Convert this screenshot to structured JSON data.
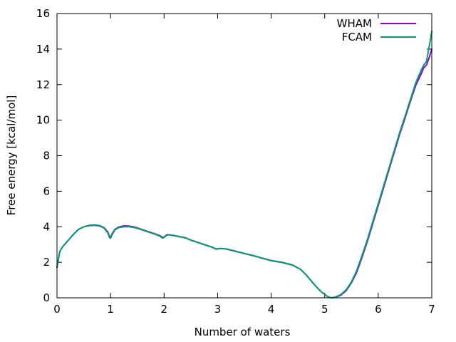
{
  "chart_data": {
    "type": "line",
    "xlabel": "Number of waters",
    "ylabel": "Free energy [kcal/mol]",
    "xlim": [
      0,
      7
    ],
    "ylim": [
      0,
      16
    ],
    "xticks": [
      "0",
      "1",
      "2",
      "3",
      "4",
      "5",
      "6",
      "7"
    ],
    "yticks": [
      "0",
      "2",
      "4",
      "6",
      "8",
      "10",
      "12",
      "14",
      "16"
    ],
    "grid": false,
    "legend_position": "top-right",
    "series": [
      {
        "name": "WHAM",
        "color": "#9400d3",
        "points": [
          [
            0.0,
            1.7
          ],
          [
            0.05,
            2.6
          ],
          [
            0.1,
            2.85
          ],
          [
            0.2,
            3.2
          ],
          [
            0.3,
            3.55
          ],
          [
            0.4,
            3.85
          ],
          [
            0.5,
            4.0
          ],
          [
            0.6,
            4.08
          ],
          [
            0.7,
            4.1
          ],
          [
            0.8,
            4.06
          ],
          [
            0.88,
            3.95
          ],
          [
            0.95,
            3.7
          ],
          [
            0.98,
            3.45
          ],
          [
            1.0,
            3.4
          ],
          [
            1.03,
            3.6
          ],
          [
            1.08,
            3.85
          ],
          [
            1.15,
            3.98
          ],
          [
            1.25,
            4.05
          ],
          [
            1.35,
            4.04
          ],
          [
            1.45,
            3.98
          ],
          [
            1.55,
            3.88
          ],
          [
            1.65,
            3.78
          ],
          [
            1.75,
            3.68
          ],
          [
            1.85,
            3.58
          ],
          [
            1.92,
            3.5
          ],
          [
            1.97,
            3.4
          ],
          [
            2.0,
            3.42
          ],
          [
            2.05,
            3.55
          ],
          [
            2.1,
            3.55
          ],
          [
            2.2,
            3.5
          ],
          [
            2.3,
            3.44
          ],
          [
            2.4,
            3.38
          ],
          [
            2.5,
            3.25
          ],
          [
            2.6,
            3.15
          ],
          [
            2.7,
            3.05
          ],
          [
            2.8,
            2.95
          ],
          [
            2.9,
            2.85
          ],
          [
            2.97,
            2.75
          ],
          [
            3.05,
            2.78
          ],
          [
            3.15,
            2.76
          ],
          [
            3.3,
            2.65
          ],
          [
            3.5,
            2.5
          ],
          [
            3.7,
            2.35
          ],
          [
            3.85,
            2.22
          ],
          [
            4.0,
            2.1
          ],
          [
            4.2,
            2.0
          ],
          [
            4.4,
            1.85
          ],
          [
            4.55,
            1.6
          ],
          [
            4.65,
            1.3
          ],
          [
            4.75,
            0.95
          ],
          [
            4.85,
            0.6
          ],
          [
            4.95,
            0.3
          ],
          [
            5.05,
            0.08
          ],
          [
            5.12,
            0.0
          ],
          [
            5.2,
            0.03
          ],
          [
            5.3,
            0.15
          ],
          [
            5.4,
            0.4
          ],
          [
            5.5,
            0.85
          ],
          [
            5.6,
            1.45
          ],
          [
            5.7,
            2.3
          ],
          [
            5.8,
            3.2
          ],
          [
            5.9,
            4.2
          ],
          [
            6.0,
            5.2
          ],
          [
            6.1,
            6.2
          ],
          [
            6.2,
            7.2
          ],
          [
            6.3,
            8.2
          ],
          [
            6.4,
            9.2
          ],
          [
            6.5,
            10.1
          ],
          [
            6.6,
            11.05
          ],
          [
            6.7,
            11.95
          ],
          [
            6.8,
            12.6
          ],
          [
            6.85,
            12.95
          ],
          [
            6.9,
            13.1
          ],
          [
            6.95,
            13.5
          ],
          [
            7.0,
            14.0
          ]
        ]
      },
      {
        "name": "FCAM",
        "color": "#009e73",
        "points": [
          [
            0.0,
            1.75
          ],
          [
            0.05,
            2.6
          ],
          [
            0.1,
            2.85
          ],
          [
            0.2,
            3.2
          ],
          [
            0.3,
            3.55
          ],
          [
            0.4,
            3.85
          ],
          [
            0.5,
            4.0
          ],
          [
            0.6,
            4.06
          ],
          [
            0.7,
            4.08
          ],
          [
            0.8,
            4.04
          ],
          [
            0.88,
            3.92
          ],
          [
            0.95,
            3.65
          ],
          [
            0.98,
            3.4
          ],
          [
            1.0,
            3.35
          ],
          [
            1.03,
            3.55
          ],
          [
            1.08,
            3.82
          ],
          [
            1.15,
            3.95
          ],
          [
            1.25,
            4.0
          ],
          [
            1.35,
            4.0
          ],
          [
            1.45,
            3.95
          ],
          [
            1.55,
            3.86
          ],
          [
            1.65,
            3.76
          ],
          [
            1.75,
            3.66
          ],
          [
            1.85,
            3.56
          ],
          [
            1.92,
            3.47
          ],
          [
            1.97,
            3.36
          ],
          [
            2.0,
            3.4
          ],
          [
            2.05,
            3.53
          ],
          [
            2.1,
            3.54
          ],
          [
            2.2,
            3.49
          ],
          [
            2.3,
            3.43
          ],
          [
            2.4,
            3.37
          ],
          [
            2.5,
            3.24
          ],
          [
            2.6,
            3.14
          ],
          [
            2.7,
            3.04
          ],
          [
            2.8,
            2.94
          ],
          [
            2.9,
            2.84
          ],
          [
            2.97,
            2.74
          ],
          [
            3.05,
            2.77
          ],
          [
            3.15,
            2.75
          ],
          [
            3.3,
            2.64
          ],
          [
            3.5,
            2.49
          ],
          [
            3.7,
            2.34
          ],
          [
            3.85,
            2.21
          ],
          [
            4.0,
            2.09
          ],
          [
            4.2,
            1.99
          ],
          [
            4.4,
            1.84
          ],
          [
            4.55,
            1.6
          ],
          [
            4.65,
            1.3
          ],
          [
            4.75,
            0.95
          ],
          [
            4.85,
            0.6
          ],
          [
            4.95,
            0.3
          ],
          [
            5.05,
            0.08
          ],
          [
            5.12,
            0.0
          ],
          [
            5.2,
            0.04
          ],
          [
            5.3,
            0.18
          ],
          [
            5.4,
            0.45
          ],
          [
            5.5,
            0.9
          ],
          [
            5.6,
            1.55
          ],
          [
            5.7,
            2.4
          ],
          [
            5.8,
            3.3
          ],
          [
            5.9,
            4.3
          ],
          [
            6.0,
            5.3
          ],
          [
            6.1,
            6.3
          ],
          [
            6.2,
            7.3
          ],
          [
            6.3,
            8.3
          ],
          [
            6.4,
            9.3
          ],
          [
            6.5,
            10.2
          ],
          [
            6.6,
            11.15
          ],
          [
            6.7,
            12.1
          ],
          [
            6.8,
            12.8
          ],
          [
            6.85,
            13.1
          ],
          [
            6.9,
            13.3
          ],
          [
            6.95,
            14.1
          ],
          [
            7.0,
            15.0
          ]
        ]
      }
    ]
  }
}
